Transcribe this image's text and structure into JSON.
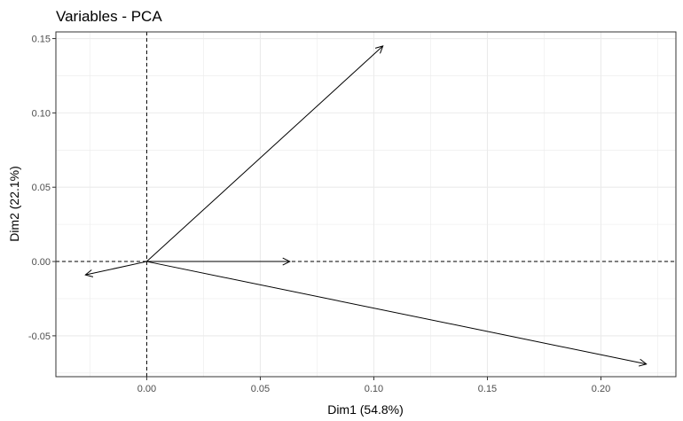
{
  "chart_data": {
    "type": "scatter",
    "title": "Variables - PCA",
    "xlabel": "Dim1 (54.8%)",
    "ylabel": "Dim2 (22.1%)",
    "xlim": [
      -0.04,
      0.233
    ],
    "ylim": [
      -0.0775,
      0.1545
    ],
    "x_ticks": [
      0.0,
      0.05,
      0.1,
      0.15,
      0.2
    ],
    "x_tick_labels": [
      "0.00",
      "0.05",
      "0.10",
      "0.15",
      "0.20"
    ],
    "y_ticks": [
      -0.05,
      0.0,
      0.05,
      0.1,
      0.15
    ],
    "y_tick_labels": [
      "-0.05",
      "0.00",
      "0.05",
      "0.10",
      "0.15"
    ],
    "grid": true,
    "reference_lines": {
      "x": 0,
      "y": 0,
      "style": "dashed"
    },
    "vectors": [
      {
        "x": 0.104,
        "y": 0.145
      },
      {
        "x": 0.063,
        "y": 0.0
      },
      {
        "x": 0.22,
        "y": -0.069
      },
      {
        "x": -0.027,
        "y": -0.009
      }
    ],
    "colors": {
      "background": "#ffffff",
      "grid": "#ebebeb",
      "panel_border": "#333333",
      "arrow": "#000000",
      "tick_text": "#4d4d4d"
    }
  }
}
